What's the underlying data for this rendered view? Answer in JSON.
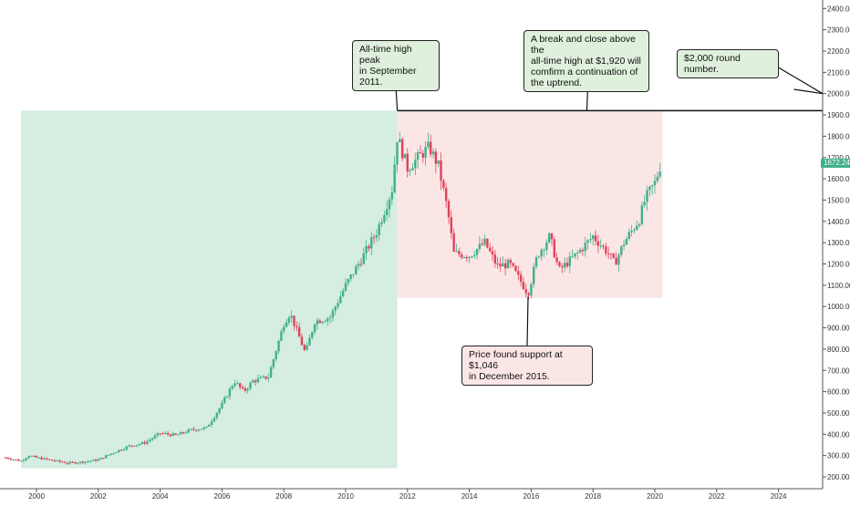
{
  "chart_data": {
    "type": "candlestick",
    "title": "",
    "xlabel": "",
    "ylabel": "",
    "xlim": [
      1998.9,
      2025.8
    ],
    "ylim": [
      180,
      2450
    ],
    "x_ticks": [
      2000,
      2002,
      2004,
      2006,
      2008,
      2010,
      2012,
      2014,
      2016,
      2018,
      2020,
      2022,
      2024
    ],
    "y_ticks": [
      200,
      300,
      400,
      500,
      600,
      700,
      800,
      900,
      1000,
      1100,
      1200,
      1300,
      1400,
      1500,
      1600,
      1700,
      1800,
      1900,
      2000,
      2100,
      2200,
      2300,
      2400
    ],
    "y_tick_format": "0.00",
    "grid": false,
    "current_price": "1672.24",
    "price_path": [
      [
        1999.0,
        290
      ],
      [
        1999.5,
        275
      ],
      [
        1999.75,
        300
      ],
      [
        2000.0,
        290
      ],
      [
        2001.0,
        265
      ],
      [
        2001.5,
        270
      ],
      [
        2002.0,
        280
      ],
      [
        2002.5,
        315
      ],
      [
        2003.0,
        345
      ],
      [
        2003.5,
        360
      ],
      [
        2004.0,
        405
      ],
      [
        2004.5,
        395
      ],
      [
        2005.0,
        420
      ],
      [
        2005.5,
        430
      ],
      [
        2006.0,
        540
      ],
      [
        2006.4,
        650
      ],
      [
        2006.7,
        600
      ],
      [
        2007.0,
        650
      ],
      [
        2007.5,
        670
      ],
      [
        2008.0,
        920
      ],
      [
        2008.2,
        970
      ],
      [
        2008.7,
        780
      ],
      [
        2009.0,
        930
      ],
      [
        2009.5,
        950
      ],
      [
        2010.0,
        1100
      ],
      [
        2010.5,
        1220
      ],
      [
        2011.0,
        1350
      ],
      [
        2011.5,
        1550
      ],
      [
        2011.67,
        1800
      ],
      [
        2012.0,
        1650
      ],
      [
        2012.7,
        1750
      ],
      [
        2013.0,
        1660
      ],
      [
        2013.3,
        1450
      ],
      [
        2013.5,
        1250
      ],
      [
        2014.0,
        1240
      ],
      [
        2014.5,
        1300
      ],
      [
        2014.9,
        1190
      ],
      [
        2015.3,
        1200
      ],
      [
        2015.7,
        1110
      ],
      [
        2015.9,
        1060
      ],
      [
        2016.2,
        1240
      ],
      [
        2016.6,
        1330
      ],
      [
        2016.9,
        1170
      ],
      [
        2017.5,
        1250
      ],
      [
        2018.0,
        1330
      ],
      [
        2018.5,
        1250
      ],
      [
        2018.7,
        1200
      ],
      [
        2019.0,
        1300
      ],
      [
        2019.5,
        1410
      ],
      [
        2019.7,
        1510
      ],
      [
        2020.0,
        1580
      ],
      [
        2020.2,
        1672
      ]
    ],
    "shaded_regions": [
      {
        "x": [
          1999.5,
          2011.67
        ],
        "y": [
          240,
          1920
        ],
        "color": "#d6ede1"
      },
      {
        "x": [
          2011.67,
          2020.25
        ],
        "y": [
          1040,
          1920
        ],
        "color": "#fbe6e6"
      }
    ],
    "reference_lines": [
      {
        "type": "horizontal",
        "y": 1920,
        "from_x": 2011.67
      },
      {
        "type": "segment",
        "points": [
          [
            2024.5,
            2020
          ],
          [
            2025.8,
            2000
          ]
        ]
      }
    ],
    "annotations": [
      {
        "id": "peak",
        "text": "All-time high peak\nin September 2011.",
        "point": [
          2011.67,
          1920
        ],
        "style": "green"
      },
      {
        "id": "break",
        "text": "A break and close above the\nall-time high at $1,920 will\ncomfirm a continuation of\nthe uptrend.",
        "point": [
          2017.8,
          1920
        ],
        "style": "green"
      },
      {
        "id": "round",
        "text": "$2,000 round number.",
        "point": [
          2025.8,
          2000
        ],
        "style": "green"
      },
      {
        "id": "support",
        "text": "Price found support at $1,046\nin December 2015.",
        "point": [
          2015.9,
          1046
        ],
        "style": "red"
      }
    ]
  }
}
